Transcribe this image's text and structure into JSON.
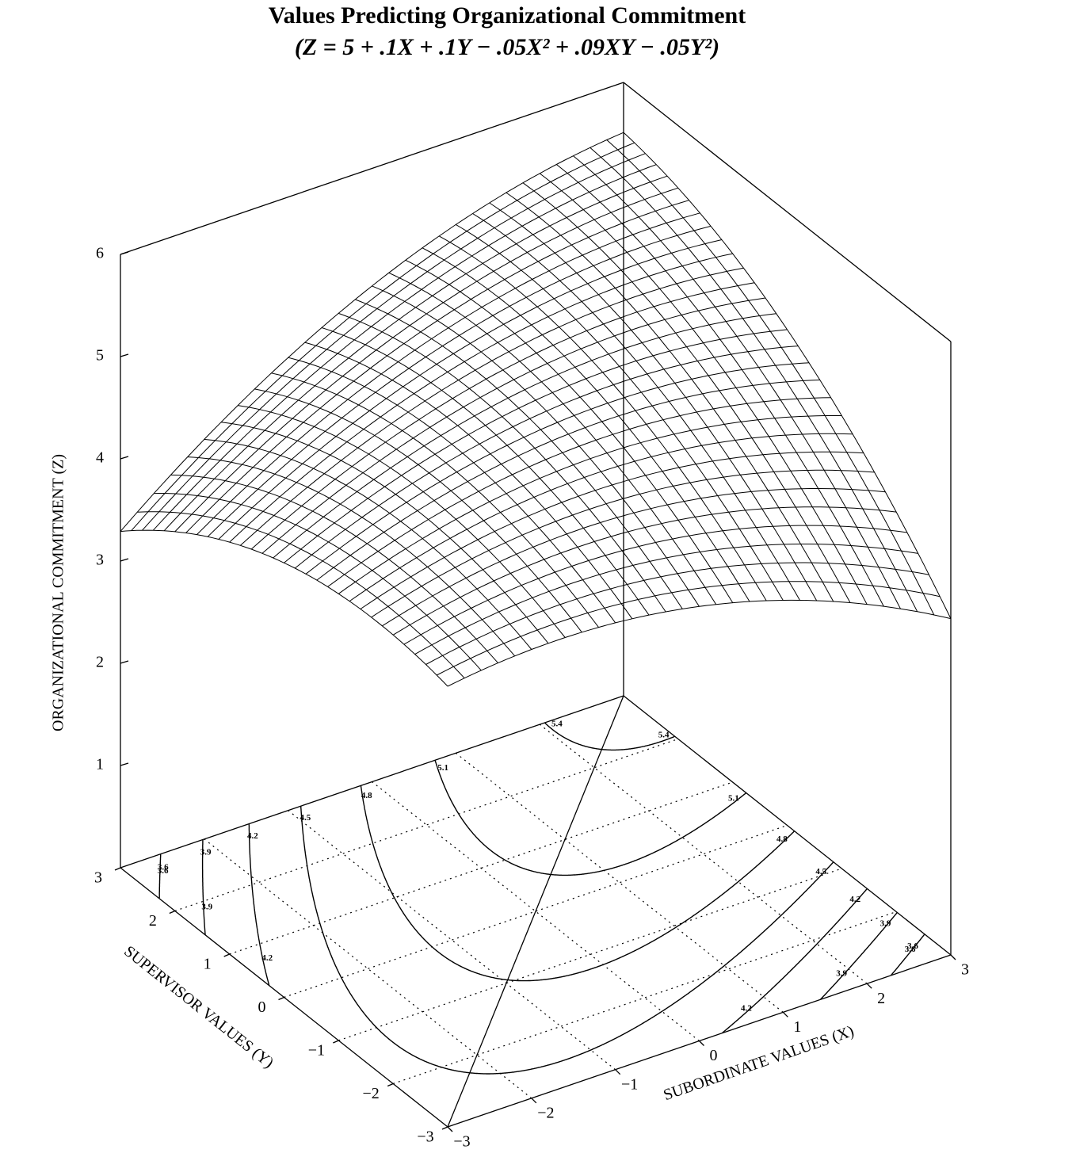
{
  "chart_data": {
    "type": "surface",
    "title": "Values Predicting Organizational Commitment",
    "subtitle": "(Z = 5 + .1X + .1Y − .05X² + .09XY − .05Y²)",
    "surface": {
      "intercept": 5,
      "x": 0.1,
      "y": 0.1,
      "x2": -0.05,
      "xy": 0.09,
      "y2": -0.05
    },
    "x_label": "SUBORDINATE VALUES (X)",
    "y_label": "SUPERVISOR VALUES (Y)",
    "z_label": "ORGANIZATIONAL COMMITMENT (Z)",
    "xlim": [
      -3,
      3
    ],
    "ylim": [
      -3,
      3
    ],
    "zlim": [
      0,
      6
    ],
    "xticks": [
      {
        "value": -3,
        "label": "−3"
      },
      {
        "value": -2,
        "label": "−2"
      },
      {
        "value": -1,
        "label": "−1"
      },
      0,
      1,
      2,
      3
    ],
    "yticks": [
      {
        "value": -3,
        "label": "−3"
      },
      {
        "value": -2,
        "label": "−2"
      },
      {
        "value": -1,
        "label": "−1"
      },
      0,
      1,
      2,
      3
    ],
    "zticks": [
      1,
      2,
      3,
      4,
      5,
      6
    ],
    "contours": [
      3.6,
      3.9,
      4.2,
      4.5,
      4.8,
      5.1,
      5.4
    ],
    "color": "#000000"
  }
}
